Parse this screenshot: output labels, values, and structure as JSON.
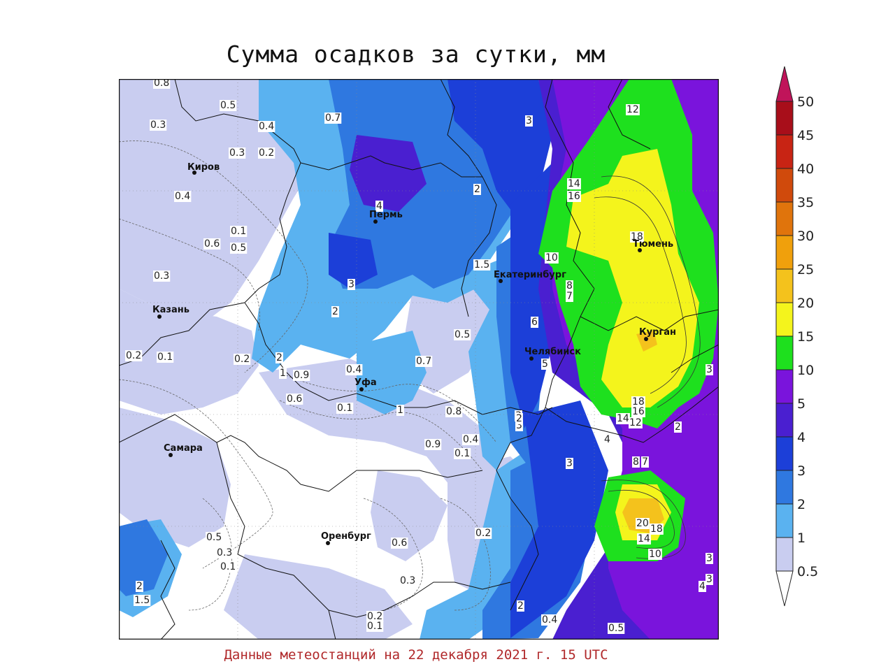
{
  "title": "Сумма осадков за сутки, мм",
  "footer": "Данные метеостанций на 22 декабря 2021 г. 15 UTC",
  "colors": {
    "c05": "#c9cdf0",
    "c1": "#5ab2f0",
    "c2": "#2f78e0",
    "c3": "#1c3fd8",
    "c4": "#4a1fd0",
    "c5": "#7a14dc",
    "c10": "#1ee01e",
    "c15": "#f4f41c",
    "c20": "#f4c21c",
    "c25": "#f0a00c",
    "c30": "#e0740c",
    "c35": "#d04a0c",
    "c40": "#c82414",
    "c45": "#a80e1a",
    "c50": "#c0145a"
  },
  "legend": {
    "ticks": [
      "0.5",
      "1",
      "2",
      "3",
      "4",
      "5",
      "10",
      "15",
      "20",
      "25",
      "30",
      "35",
      "40",
      "45",
      "50"
    ]
  },
  "cities": [
    {
      "name": "Киров"
    },
    {
      "name": "Пермь"
    },
    {
      "name": "Екатеринбург"
    },
    {
      "name": "Тюмень"
    },
    {
      "name": "Казань"
    },
    {
      "name": "Курган"
    },
    {
      "name": "Челябинск"
    },
    {
      "name": "Уфа"
    },
    {
      "name": "Самара"
    },
    {
      "name": "Оренбург"
    }
  ],
  "contour_labels": {
    "a": "0.8",
    "b": "0.5",
    "c": "0.7",
    "d": "0.3",
    "e": "0.4",
    "f": "0.3",
    "g": "0.2",
    "h": "0.4",
    "i": "0.1",
    "j": "0.6",
    "k": "0.5",
    "l": "0.3",
    "m": "0.2",
    "n": "0.1",
    "o": "0.2",
    "p": "0.9",
    "q": "0.6",
    "r": "0.4",
    "s": "0.1",
    "t": "0.7",
    "u": "0.8",
    "v": "0.9",
    "w": "0.4",
    "x": "0.1",
    "y": "0.5",
    "z": "0.3",
    "aa": "0.1",
    "ab": "0.6",
    "ac": "0.2",
    "ad": "0.4",
    "ae": "0.5",
    "af": "0.2",
    "ag": "0.1",
    "ah": "0.3",
    "ai": "0.5",
    "q1": "3",
    "q2": "2",
    "q3": "4",
    "q4": "3",
    "q5": "2",
    "q6": "1.5",
    "q7": "2",
    "q8": "1",
    "q9": "6",
    "q10": "5",
    "q11": "8",
    "q12": "7",
    "q13": "3",
    "q14": "3",
    "q15": "2",
    "q16": "4",
    "q17": "3",
    "q18": "2",
    "q19": "2",
    "q20": "3",
    "q21": "4",
    "q22": "3",
    "q23": "3",
    "q24": "12",
    "q25": "14",
    "q26": "16",
    "q27": "10",
    "q28": "18",
    "q29": "18",
    "q30": "16",
    "q31": "14",
    "q32": "12",
    "q33": "8",
    "q34": "7",
    "q35": "20",
    "q36": "18",
    "q37": "14",
    "q38": "10",
    "q39": "1.5",
    "q40": "2",
    "q41": "1"
  }
}
